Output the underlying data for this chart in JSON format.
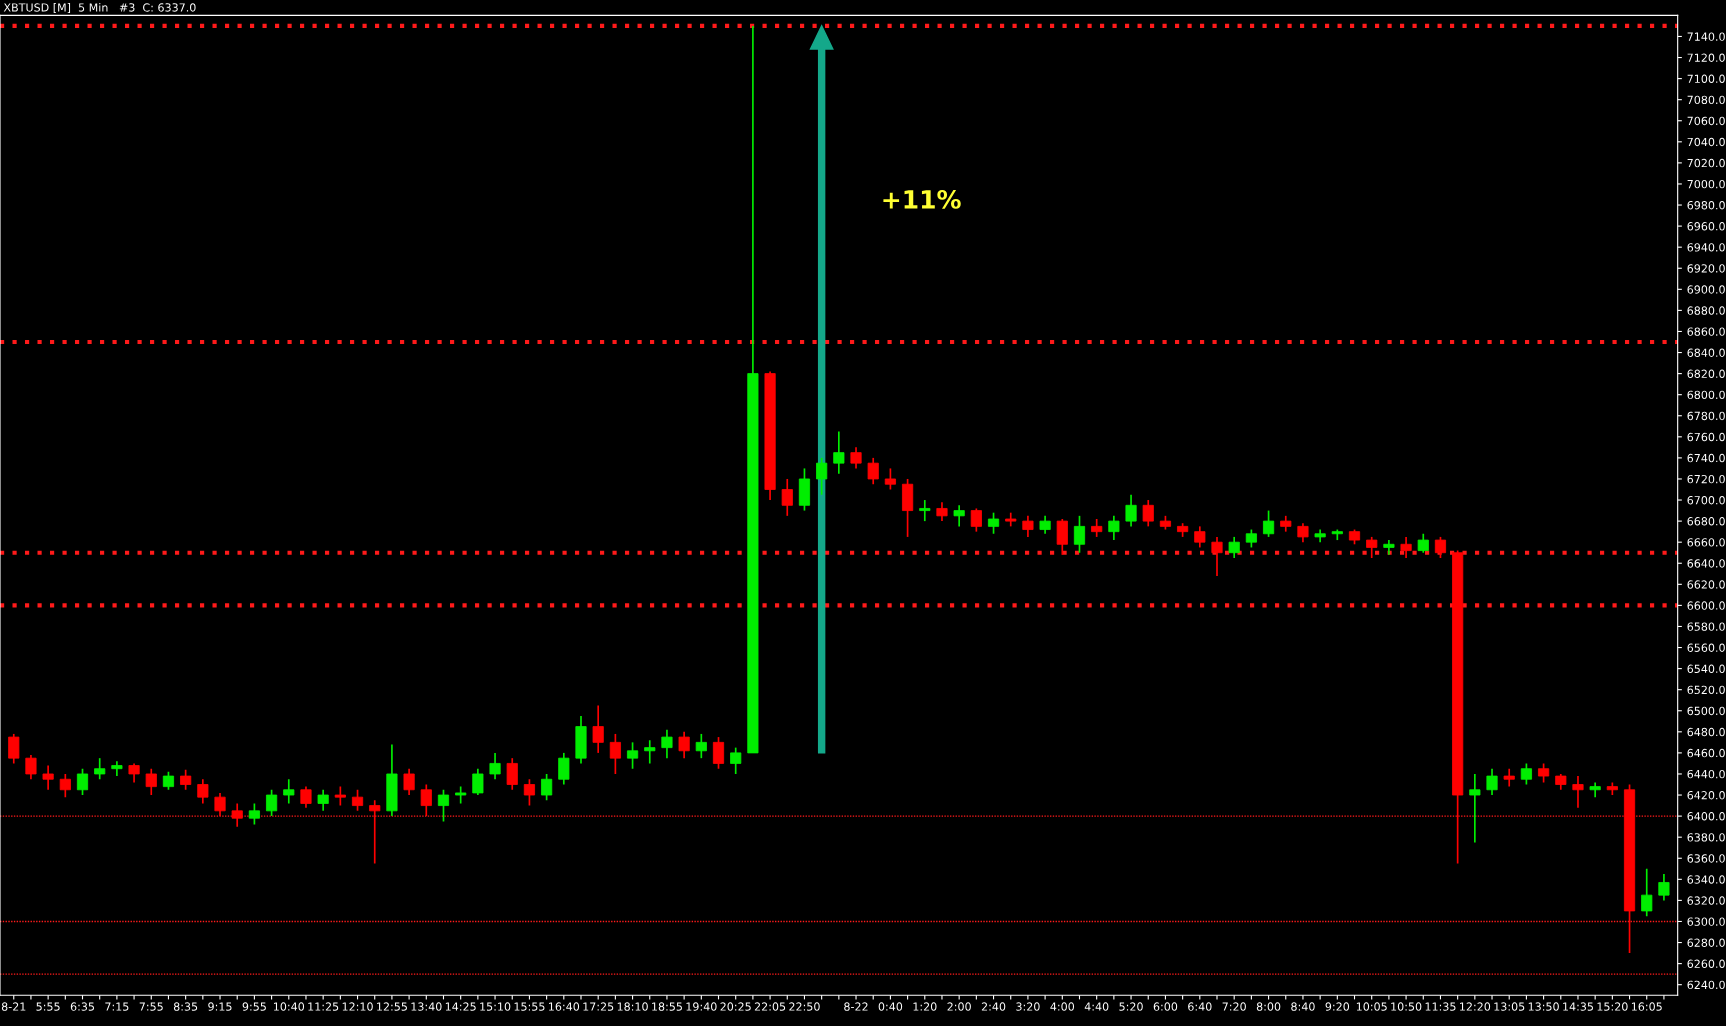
{
  "chart_data": {
    "type": "candlestick",
    "title": "XBTUSD [M]  5 Min   #3  C: 6337.0",
    "categories": [
      "8-21",
      null,
      "5:55",
      null,
      "6:35",
      null,
      "7:15",
      null,
      "7:55",
      null,
      "8:35",
      null,
      "9:15",
      null,
      "9:55",
      null,
      "10:40",
      null,
      "11:25",
      null,
      "12:10",
      null,
      "12:55",
      null,
      "13:40",
      null,
      "14:25",
      null,
      "15:10",
      null,
      "15:55",
      null,
      "16:40",
      null,
      "17:25",
      null,
      "18:10",
      null,
      "18:55",
      null,
      "19:40",
      null,
      "20:25",
      null,
      "22:05",
      null,
      "22:50",
      null,
      null,
      "8-22",
      null,
      "0:40",
      null,
      "1:20",
      null,
      "2:00",
      null,
      "2:40",
      null,
      "3:20",
      null,
      "4:00",
      null,
      "4:40",
      null,
      "5:20",
      null,
      "6:00",
      null,
      "6:40",
      null,
      "7:20",
      null,
      "8:00",
      null,
      "8:40",
      null,
      "9:20",
      null,
      "10:05",
      null,
      "10:50",
      null,
      "11:35",
      null,
      "12:20",
      null,
      "13:05",
      null,
      "13:50",
      null,
      "14:35",
      null,
      "15:20",
      null,
      "16:05",
      null
    ],
    "ohlc": [
      [
        6475,
        6478,
        6450,
        6455
      ],
      [
        6455,
        6458,
        6435,
        6440
      ],
      [
        6440,
        6448,
        6425,
        6435
      ],
      [
        6435,
        6440,
        6418,
        6425
      ],
      [
        6425,
        6445,
        6420,
        6440
      ],
      [
        6440,
        6455,
        6435,
        6445
      ],
      [
        6445,
        6452,
        6438,
        6448
      ],
      [
        6448,
        6450,
        6432,
        6440
      ],
      [
        6440,
        6445,
        6420,
        6428
      ],
      [
        6428,
        6442,
        6425,
        6438
      ],
      [
        6438,
        6444,
        6425,
        6430
      ],
      [
        6430,
        6435,
        6412,
        6418
      ],
      [
        6418,
        6422,
        6400,
        6405
      ],
      [
        6405,
        6412,
        6390,
        6398
      ],
      [
        6398,
        6412,
        6392,
        6405
      ],
      [
        6405,
        6425,
        6400,
        6420
      ],
      [
        6420,
        6435,
        6412,
        6425
      ],
      [
        6425,
        6428,
        6408,
        6412
      ],
      [
        6412,
        6425,
        6405,
        6420
      ],
      [
        6420,
        6428,
        6410,
        6418
      ],
      [
        6418,
        6425,
        6405,
        6410
      ],
      [
        6410,
        6415,
        6355,
        6405
      ],
      [
        6405,
        6468,
        6400,
        6440
      ],
      [
        6440,
        6445,
        6420,
        6425
      ],
      [
        6425,
        6430,
        6400,
        6410
      ],
      [
        6410,
        6425,
        6395,
        6420
      ],
      [
        6420,
        6428,
        6412,
        6422
      ],
      [
        6422,
        6445,
        6420,
        6440
      ],
      [
        6440,
        6460,
        6435,
        6450
      ],
      [
        6450,
        6455,
        6425,
        6430
      ],
      [
        6430,
        6435,
        6410,
        6420
      ],
      [
        6420,
        6440,
        6415,
        6435
      ],
      [
        6435,
        6460,
        6430,
        6455
      ],
      [
        6455,
        6495,
        6450,
        6485
      ],
      [
        6485,
        6505,
        6460,
        6470
      ],
      [
        6470,
        6478,
        6440,
        6455
      ],
      [
        6455,
        6470,
        6445,
        6462
      ],
      [
        6462,
        6472,
        6450,
        6465
      ],
      [
        6465,
        6482,
        6455,
        6475
      ],
      [
        6475,
        6480,
        6455,
        6462
      ],
      [
        6462,
        6478,
        6455,
        6470
      ],
      [
        6470,
        6475,
        6445,
        6450
      ],
      [
        6450,
        6465,
        6440,
        6460
      ],
      [
        6460,
        7150,
        6460,
        6820
      ],
      [
        6820,
        6822,
        6700,
        6710
      ],
      [
        6710,
        6720,
        6685,
        6695
      ],
      [
        6695,
        6730,
        6690,
        6720
      ],
      [
        6720,
        6740,
        6705,
        6735
      ],
      [
        6735,
        6765,
        6725,
        6745
      ],
      [
        6745,
        6750,
        6730,
        6735
      ],
      [
        6735,
        6740,
        6715,
        6720
      ],
      [
        6720,
        6730,
        6710,
        6715
      ],
      [
        6715,
        6720,
        6665,
        6690
      ],
      [
        6690,
        6700,
        6680,
        6692
      ],
      [
        6692,
        6698,
        6680,
        6685
      ],
      [
        6685,
        6695,
        6675,
        6690
      ],
      [
        6690,
        6692,
        6670,
        6675
      ],
      [
        6675,
        6688,
        6668,
        6682
      ],
      [
        6682,
        6688,
        6675,
        6680
      ],
      [
        6680,
        6685,
        6665,
        6672
      ],
      [
        6672,
        6685,
        6668,
        6680
      ],
      [
        6680,
        6682,
        6648,
        6658
      ],
      [
        6658,
        6685,
        6650,
        6675
      ],
      [
        6675,
        6682,
        6665,
        6670
      ],
      [
        6670,
        6685,
        6662,
        6680
      ],
      [
        6680,
        6705,
        6675,
        6695
      ],
      [
        6695,
        6700,
        6675,
        6680
      ],
      [
        6680,
        6685,
        6672,
        6675
      ],
      [
        6675,
        6678,
        6665,
        6670
      ],
      [
        6670,
        6675,
        6655,
        6660
      ],
      [
        6660,
        6665,
        6628,
        6650
      ],
      [
        6650,
        6665,
        6645,
        6660
      ],
      [
        6660,
        6672,
        6655,
        6668
      ],
      [
        6668,
        6690,
        6665,
        6680
      ],
      [
        6680,
        6685,
        6670,
        6675
      ],
      [
        6675,
        6678,
        6660,
        6665
      ],
      [
        6665,
        6672,
        6660,
        6668
      ],
      [
        6668,
        6672,
        6662,
        6670
      ],
      [
        6670,
        6672,
        6658,
        6662
      ],
      [
        6662,
        6665,
        6645,
        6655
      ],
      [
        6655,
        6662,
        6648,
        6658
      ],
      [
        6658,
        6665,
        6645,
        6652
      ],
      [
        6652,
        6668,
        6650,
        6662
      ],
      [
        6662,
        6665,
        6645,
        6650
      ],
      [
        6650,
        6652,
        6355,
        6420
      ],
      [
        6420,
        6440,
        6375,
        6425
      ],
      [
        6425,
        6445,
        6420,
        6438
      ],
      [
        6438,
        6445,
        6428,
        6435
      ],
      [
        6435,
        6450,
        6430,
        6445
      ],
      [
        6445,
        6450,
        6432,
        6438
      ],
      [
        6438,
        6440,
        6425,
        6430
      ],
      [
        6430,
        6438,
        6408,
        6425
      ],
      [
        6425,
        6432,
        6418,
        6428
      ],
      [
        6428,
        6432,
        6420,
        6425
      ],
      [
        6425,
        6430,
        6270,
        6310
      ],
      [
        6310,
        6350,
        6305,
        6325
      ],
      [
        6325,
        6345,
        6320,
        6337
      ]
    ],
    "colors": [
      "#ff0000",
      "#ff0000",
      "#ff0000",
      "#ff0000",
      "#00ee00",
      "#00ee00",
      "#00ee00",
      "#ff0000",
      "#ff0000",
      "#00ee00",
      "#ff0000",
      "#ff0000",
      "#ff0000",
      "#ff0000",
      "#00ee00",
      "#00ee00",
      "#00ee00",
      "#ff0000",
      "#00ee00",
      "#ff0000",
      "#ff0000",
      "#ff0000",
      "#00ee00",
      "#ff0000",
      "#ff0000",
      "#00ee00",
      "#00ee00",
      "#00ee00",
      "#00ee00",
      "#ff0000",
      "#ff0000",
      "#00ee00",
      "#00ee00",
      "#00ee00",
      "#ff0000",
      "#ff0000",
      "#00ee00",
      "#00ee00",
      "#00ee00",
      "#ff0000",
      "#00ee00",
      "#ff0000",
      "#00ee00",
      "#00ee00",
      "#ff0000",
      "#ff0000",
      "#00ee00",
      "#00ee00",
      "#00ee00",
      "#ff0000",
      "#ff0000",
      "#ff0000",
      "#ff0000",
      "#00ee00",
      "#ff0000",
      "#00ee00",
      "#ff0000",
      "#00ee00",
      "#ff0000",
      "#ff0000",
      "#00ee00",
      "#ff0000",
      "#00ee00",
      "#ff0000",
      "#00ee00",
      "#00ee00",
      "#ff0000",
      "#ff0000",
      "#ff0000",
      "#ff0000",
      "#ff0000",
      "#00ee00",
      "#00ee00",
      "#00ee00",
      "#ff0000",
      "#ff0000",
      "#00ee00",
      "#00ee00",
      "#ff0000",
      "#ff0000",
      "#00ee00",
      "#ff0000",
      "#00ee00",
      "#ff0000",
      "#ff0000",
      "#00ee00",
      "#00ee00",
      "#ff0000",
      "#00ee00",
      "#ff0000",
      "#ff0000",
      "#ff0000",
      "#00ee00",
      "#ff0000",
      "#ff0000",
      "#00ee00",
      "#00ee00"
    ],
    "ylim": [
      6230,
      7160
    ],
    "yticks": [
      {
        "value": 6240,
        "label": "6240.0"
      },
      {
        "value": 6260,
        "label": "6260.0"
      },
      {
        "value": 6280,
        "label": "6280.0"
      },
      {
        "value": 6300,
        "label": "6300.0"
      },
      {
        "value": 6320,
        "label": "6320.0"
      },
      {
        "value": 6340,
        "label": "6340.0"
      },
      {
        "value": 6360,
        "label": "6360.0"
      },
      {
        "value": 6380,
        "label": "6380.0"
      },
      {
        "value": 6400,
        "label": "6400.0"
      },
      {
        "value": 6420,
        "label": "6420.0"
      },
      {
        "value": 6440,
        "label": "6440.0"
      },
      {
        "value": 6460,
        "label": "6460.0"
      },
      {
        "value": 6480,
        "label": "6480.0"
      },
      {
        "value": 6500,
        "label": "6500.0"
      },
      {
        "value": 6520,
        "label": "6520.0"
      },
      {
        "value": 6540,
        "label": "6540.0"
      },
      {
        "value": 6560,
        "label": "6560.0"
      },
      {
        "value": 6580,
        "label": "6580.0"
      },
      {
        "value": 6600,
        "label": "6600.0"
      },
      {
        "value": 6620,
        "label": "6620.0"
      },
      {
        "value": 6640,
        "label": "6640.0"
      },
      {
        "value": 6660,
        "label": "6660.0"
      },
      {
        "value": 6680,
        "label": "6680.0"
      },
      {
        "value": 6700,
        "label": "6700.0"
      },
      {
        "value": 6720,
        "label": "6720.0"
      },
      {
        "value": 6740,
        "label": "6740.0"
      },
      {
        "value": 6760,
        "label": "6760.0"
      },
      {
        "value": 6780,
        "label": "6780.0"
      },
      {
        "value": 6800,
        "label": "6800.0"
      },
      {
        "value": 6820,
        "label": "6820.0"
      },
      {
        "value": 6840,
        "label": "6840.0"
      },
      {
        "value": 6860,
        "label": "6860.0"
      },
      {
        "value": 6880,
        "label": "6880.0"
      },
      {
        "value": 6900,
        "label": "6900.0"
      },
      {
        "value": 6920,
        "label": "6920.0"
      },
      {
        "value": 6940,
        "label": "6940.0"
      },
      {
        "value": 6960,
        "label": "6960.0"
      },
      {
        "value": 6980,
        "label": "6980.0"
      },
      {
        "value": 7000,
        "label": "7000.0"
      },
      {
        "value": 7020,
        "label": "7020.0"
      },
      {
        "value": 7040,
        "label": "7040.0"
      },
      {
        "value": 7060,
        "label": "7060.0"
      },
      {
        "value": 7080,
        "label": "7080.0"
      },
      {
        "value": 7100,
        "label": "7100.0"
      },
      {
        "value": 7120,
        "label": "7120.0"
      },
      {
        "value": 7140,
        "label": "7140.0"
      }
    ],
    "ref_lines": [
      {
        "axis": "y",
        "value": 7150,
        "color": "#ff1a1a",
        "line_style": "dotted"
      },
      {
        "axis": "y",
        "value": 6850,
        "color": "#ff1a1a",
        "line_style": "dotted"
      },
      {
        "axis": "y",
        "value": 6650,
        "color": "#ff1a1a",
        "line_style": "dotted"
      },
      {
        "axis": "y",
        "value": 6600,
        "color": "#ff1a1a",
        "line_style": "dotted"
      },
      {
        "axis": "y",
        "value": 6400,
        "color": "#ff1a1a",
        "line_style": "dashed"
      },
      {
        "axis": "y",
        "value": 6300,
        "color": "#ff1a1a",
        "line_style": "dashed"
      },
      {
        "axis": "y",
        "value": 6250,
        "color": "#ff1a1a",
        "line_style": "dashed"
      }
    ],
    "annotations": [
      "+11%"
    ],
    "grid": false
  }
}
